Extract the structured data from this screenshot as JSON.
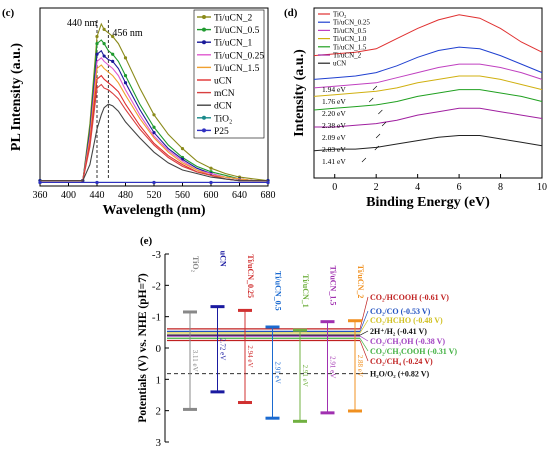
{
  "chart_data": [
    {
      "panel": "(c)",
      "type": "line",
      "xlabel": "Wavelength (nm)",
      "ylabel": "PL Intensity (a.u.)",
      "xlim": [
        360,
        680
      ],
      "ylim": [
        0,
        100
      ],
      "xticks": [
        360,
        400,
        440,
        480,
        520,
        560,
        600,
        640,
        680
      ],
      "y_scale_labels": false,
      "peak_annotations": [
        {
          "text": "440 nm",
          "x": 440
        },
        {
          "text": "456 nm",
          "x": 456
        }
      ],
      "legend_position": "right",
      "series": [
        {
          "name": "Ti/uCN_2",
          "color": "#8a8a1a",
          "marker": "circle",
          "x": [
            360,
            400,
            420,
            430,
            440,
            446,
            450,
            456,
            462,
            470,
            480,
            500,
            520,
            540,
            560,
            580,
            600,
            620,
            640,
            660,
            680
          ],
          "y": [
            3,
            3,
            3,
            35,
            84,
            91,
            88,
            86,
            84,
            80,
            72,
            55,
            40,
            29,
            21,
            14,
            10,
            7,
            5,
            4,
            3
          ]
        },
        {
          "name": "Ti/uCN_0.5",
          "color": "#1f9a2f",
          "marker": "circle",
          "x": [
            360,
            400,
            420,
            430,
            440,
            446,
            450,
            456,
            462,
            470,
            480,
            500,
            520,
            540,
            560,
            580,
            600,
            620,
            640,
            660,
            680
          ],
          "y": [
            3,
            3,
            3,
            32,
            80,
            82,
            80,
            76,
            74,
            70,
            62,
            46,
            33,
            23,
            16,
            11,
            8,
            6,
            4,
            3,
            3
          ]
        },
        {
          "name": "Ti/uCN_1",
          "color": "#1a1a9a",
          "marker": "circle",
          "x": [
            360,
            400,
            420,
            430,
            440,
            446,
            450,
            456,
            462,
            470,
            480,
            500,
            520,
            540,
            560,
            580,
            600,
            620,
            640,
            660,
            680
          ],
          "y": [
            3,
            3,
            3,
            30,
            74,
            76,
            73,
            71,
            70,
            66,
            58,
            43,
            30,
            21,
            15,
            10,
            7,
            5,
            4,
            3,
            3
          ]
        },
        {
          "name": "Ti/uCN_0.25",
          "color": "#e05ad0",
          "marker": "line",
          "x": [
            360,
            400,
            420,
            430,
            440,
            446,
            450,
            456,
            462,
            470,
            480,
            500,
            520,
            540,
            560,
            580,
            600,
            620,
            640,
            660,
            680
          ],
          "y": [
            3,
            3,
            3,
            28,
            70,
            72,
            70,
            68,
            66,
            62,
            54,
            40,
            28,
            20,
            14,
            9,
            7,
            5,
            4,
            3,
            3
          ]
        },
        {
          "name": "Ti/uCN_1.5",
          "color": "#f0a030",
          "marker": "line",
          "x": [
            360,
            400,
            420,
            430,
            440,
            446,
            450,
            456,
            462,
            470,
            480,
            500,
            520,
            540,
            560,
            580,
            600,
            620,
            640,
            660,
            680
          ],
          "y": [
            3,
            3,
            3,
            26,
            66,
            68,
            66,
            64,
            62,
            58,
            51,
            38,
            27,
            19,
            13,
            9,
            6,
            5,
            4,
            3,
            3
          ]
        },
        {
          "name": "uCN",
          "color": "#e03030",
          "marker": "line",
          "x": [
            360,
            400,
            420,
            430,
            440,
            446,
            450,
            456,
            462,
            470,
            480,
            500,
            520,
            540,
            560,
            580,
            600,
            620,
            640,
            660,
            680
          ],
          "y": [
            3,
            3,
            3,
            24,
            60,
            62,
            60,
            58,
            56,
            53,
            46,
            34,
            24,
            17,
            12,
            8,
            6,
            4,
            3,
            3,
            3
          ]
        },
        {
          "name": "mCN",
          "color": "#d84040",
          "marker": "line",
          "x": [
            360,
            400,
            420,
            430,
            440,
            446,
            450,
            456,
            462,
            470,
            480,
            500,
            520,
            540,
            560,
            580,
            600,
            620,
            640,
            660,
            680
          ],
          "y": [
            3,
            3,
            3,
            22,
            55,
            57,
            55,
            54,
            52,
            49,
            43,
            32,
            23,
            16,
            11,
            8,
            6,
            4,
            3,
            3,
            3
          ]
        },
        {
          "name": "dCN",
          "color": "#444444",
          "marker": "line",
          "x": [
            360,
            400,
            420,
            430,
            440,
            446,
            450,
            456,
            462,
            470,
            480,
            500,
            520,
            540,
            560,
            580,
            600,
            620,
            640,
            660,
            680
          ],
          "y": [
            3,
            3,
            3,
            12,
            32,
            40,
            44,
            46,
            45,
            42,
            36,
            27,
            19,
            13,
            9,
            7,
            5,
            4,
            3,
            3,
            3
          ]
        },
        {
          "name": "TiO₂",
          "color": "#1a8a8a",
          "marker": "circle",
          "x": [
            360,
            400,
            440,
            480,
            520,
            560,
            600,
            640,
            680
          ],
          "y": [
            2,
            2,
            2,
            2,
            2,
            2,
            2,
            2,
            2
          ]
        },
        {
          "name": "P25",
          "color": "#3030c0",
          "marker": "circle",
          "x": [
            360,
            400,
            440,
            480,
            520,
            560,
            600,
            640,
            680
          ],
          "y": [
            2,
            2,
            2,
            2,
            2,
            2,
            2,
            2,
            2
          ]
        }
      ]
    },
    {
      "panel": "(d)",
      "type": "line",
      "xlabel": "Binding Energy (eV)",
      "ylabel": "Intensity (a.u.)",
      "xlim": [
        -1,
        10
      ],
      "ylim": [
        0,
        100
      ],
      "xticks": [
        0,
        2,
        4,
        6,
        8,
        10
      ],
      "y_scale_labels": false,
      "legend_position": "top-left",
      "series": [
        {
          "name": "TiO₂",
          "color": "#e03030",
          "x": [
            -1,
            0,
            1,
            2,
            3,
            4,
            5,
            6,
            7,
            8,
            9,
            10
          ],
          "y": [
            72,
            73,
            74,
            76,
            82,
            88,
            93,
            96,
            94,
            88,
            80,
            74
          ]
        },
        {
          "name": "Ti/uCN_0.25",
          "color": "#2040d0",
          "x": [
            -1,
            0,
            1,
            2,
            3,
            4,
            5,
            6,
            7,
            8,
            9,
            10
          ],
          "y": [
            58,
            59,
            60,
            62,
            66,
            71,
            75,
            77,
            76,
            72,
            67,
            62
          ]
        },
        {
          "name": "Ti/uCN_0.5",
          "color": "#c040c0",
          "x": [
            -1,
            0,
            1,
            2,
            3,
            4,
            5,
            6,
            7,
            8,
            9,
            10
          ],
          "y": [
            53,
            54,
            55,
            56,
            59,
            62,
            65,
            67,
            67,
            65,
            62,
            58
          ]
        },
        {
          "name": "Ti/uCN_1.0",
          "color": "#d0b010",
          "x": [
            -1,
            0,
            1,
            2,
            3,
            4,
            5,
            6,
            7,
            8,
            9,
            10
          ],
          "y": [
            48,
            49,
            50,
            51,
            53,
            56,
            58,
            60,
            60,
            58,
            55,
            52
          ]
        },
        {
          "name": "Ti/uCN_1.5",
          "color": "#20a020",
          "x": [
            -1,
            0,
            1,
            2,
            3,
            4,
            5,
            6,
            7,
            8,
            9,
            10
          ],
          "y": [
            40,
            41,
            42,
            43,
            45,
            48,
            50,
            52,
            52,
            50,
            48,
            45
          ]
        },
        {
          "name": "Ti/uCN_2",
          "color": "#a020a0",
          "x": [
            -1,
            0,
            1,
            2,
            3,
            4,
            5,
            6,
            7,
            8,
            9,
            10
          ],
          "y": [
            30,
            30,
            31,
            32,
            34,
            37,
            39,
            41,
            41,
            39,
            37,
            35
          ]
        },
        {
          "name": "uCN",
          "color": "#222222",
          "x": [
            -1,
            0,
            1,
            2,
            3,
            4,
            5,
            6,
            7,
            8,
            9,
            10
          ],
          "y": [
            16,
            17,
            17,
            18,
            20,
            22,
            24,
            25,
            25,
            23,
            21,
            19
          ]
        }
      ],
      "annotations": [
        {
          "text": "1.94 eV",
          "x": 1.94,
          "series": "Ti/uCN_0.25"
        },
        {
          "text": "1.76 eV",
          "x": 1.76,
          "series": "Ti/uCN_0.5"
        },
        {
          "text": "2.20 eV",
          "x": 2.2,
          "series": "Ti/uCN_1.0"
        },
        {
          "text": "2.38 eV",
          "x": 2.38,
          "series": "Ti/uCN_1.5"
        },
        {
          "text": "2.09 eV",
          "x": 2.09,
          "series": "Ti/uCN_2"
        },
        {
          "text": "2.03 eV",
          "x": 2.03,
          "series": "uCN"
        },
        {
          "text": "1.41 eV",
          "x": 1.41,
          "series": "uCN"
        }
      ]
    },
    {
      "panel": "(e)",
      "type": "bar",
      "ylabel": "Potentials (V) vs. NHE (pH=7)",
      "ylim": [
        -3,
        3
      ],
      "yticks": [
        -3,
        -2,
        -1,
        0,
        1,
        2,
        3
      ],
      "y_inverted": true,
      "band_edges": [
        {
          "name": "TiO₂",
          "cb": -1.15,
          "vb": 1.96,
          "gap": "3.11 eV",
          "color": "#888888"
        },
        {
          "name": "uCN",
          "cb": -1.32,
          "vb": 1.4,
          "gap": "2.72 eV",
          "color": "#1a1aa0"
        },
        {
          "name": "Ti/uCN_0.25",
          "cb": -1.2,
          "vb": 1.74,
          "gap": "2.94 eV",
          "color": "#d03030"
        },
        {
          "name": "Ti/uCN_0.5",
          "cb": -0.67,
          "vb": 2.24,
          "gap": "2.91 eV",
          "color": "#1a6ad0"
        },
        {
          "name": "Ti/uCN_1",
          "cb": -0.57,
          "vb": 2.34,
          "gap": "2.91 eV",
          "color": "#70b040"
        },
        {
          "name": "Ti/uCN_1.5",
          "cb": -0.84,
          "vb": 2.07,
          "gap": "2.91 eV",
          "color": "#a030b0"
        },
        {
          "name": "Ti/uCN_2",
          "cb": -0.87,
          "vb": 2.01,
          "gap": "2.88 eV",
          "color": "#f09020"
        }
      ],
      "redox_levels": [
        {
          "label": "CO₂/HCOOH (-0.61 V)",
          "value": -0.61,
          "color": "#c02020"
        },
        {
          "label": "CO₂/CO (-0.53 V)",
          "value": -0.53,
          "color": "#2050c0"
        },
        {
          "label": "CO₂/HCHO (-0.48 V)",
          "value": -0.48,
          "color": "#d0c020"
        },
        {
          "label": "2H⁺/H₂ (-0.41 V)",
          "value": -0.41,
          "color": "#111111"
        },
        {
          "label": "CO₂/CH₃OH (-0.38 V)",
          "value": -0.38,
          "color": "#a040c0"
        },
        {
          "label": "CO₂/CH₃COOH (-0.31 V)",
          "value": -0.31,
          "color": "#40b040"
        },
        {
          "label": "CO₂/CH₄ (-0.24 V)",
          "value": -0.24,
          "color": "#c02020"
        },
        {
          "label": "H₂O/O₂ (+0.82 V)",
          "value": 0.82,
          "color": "#111111"
        }
      ]
    }
  ]
}
